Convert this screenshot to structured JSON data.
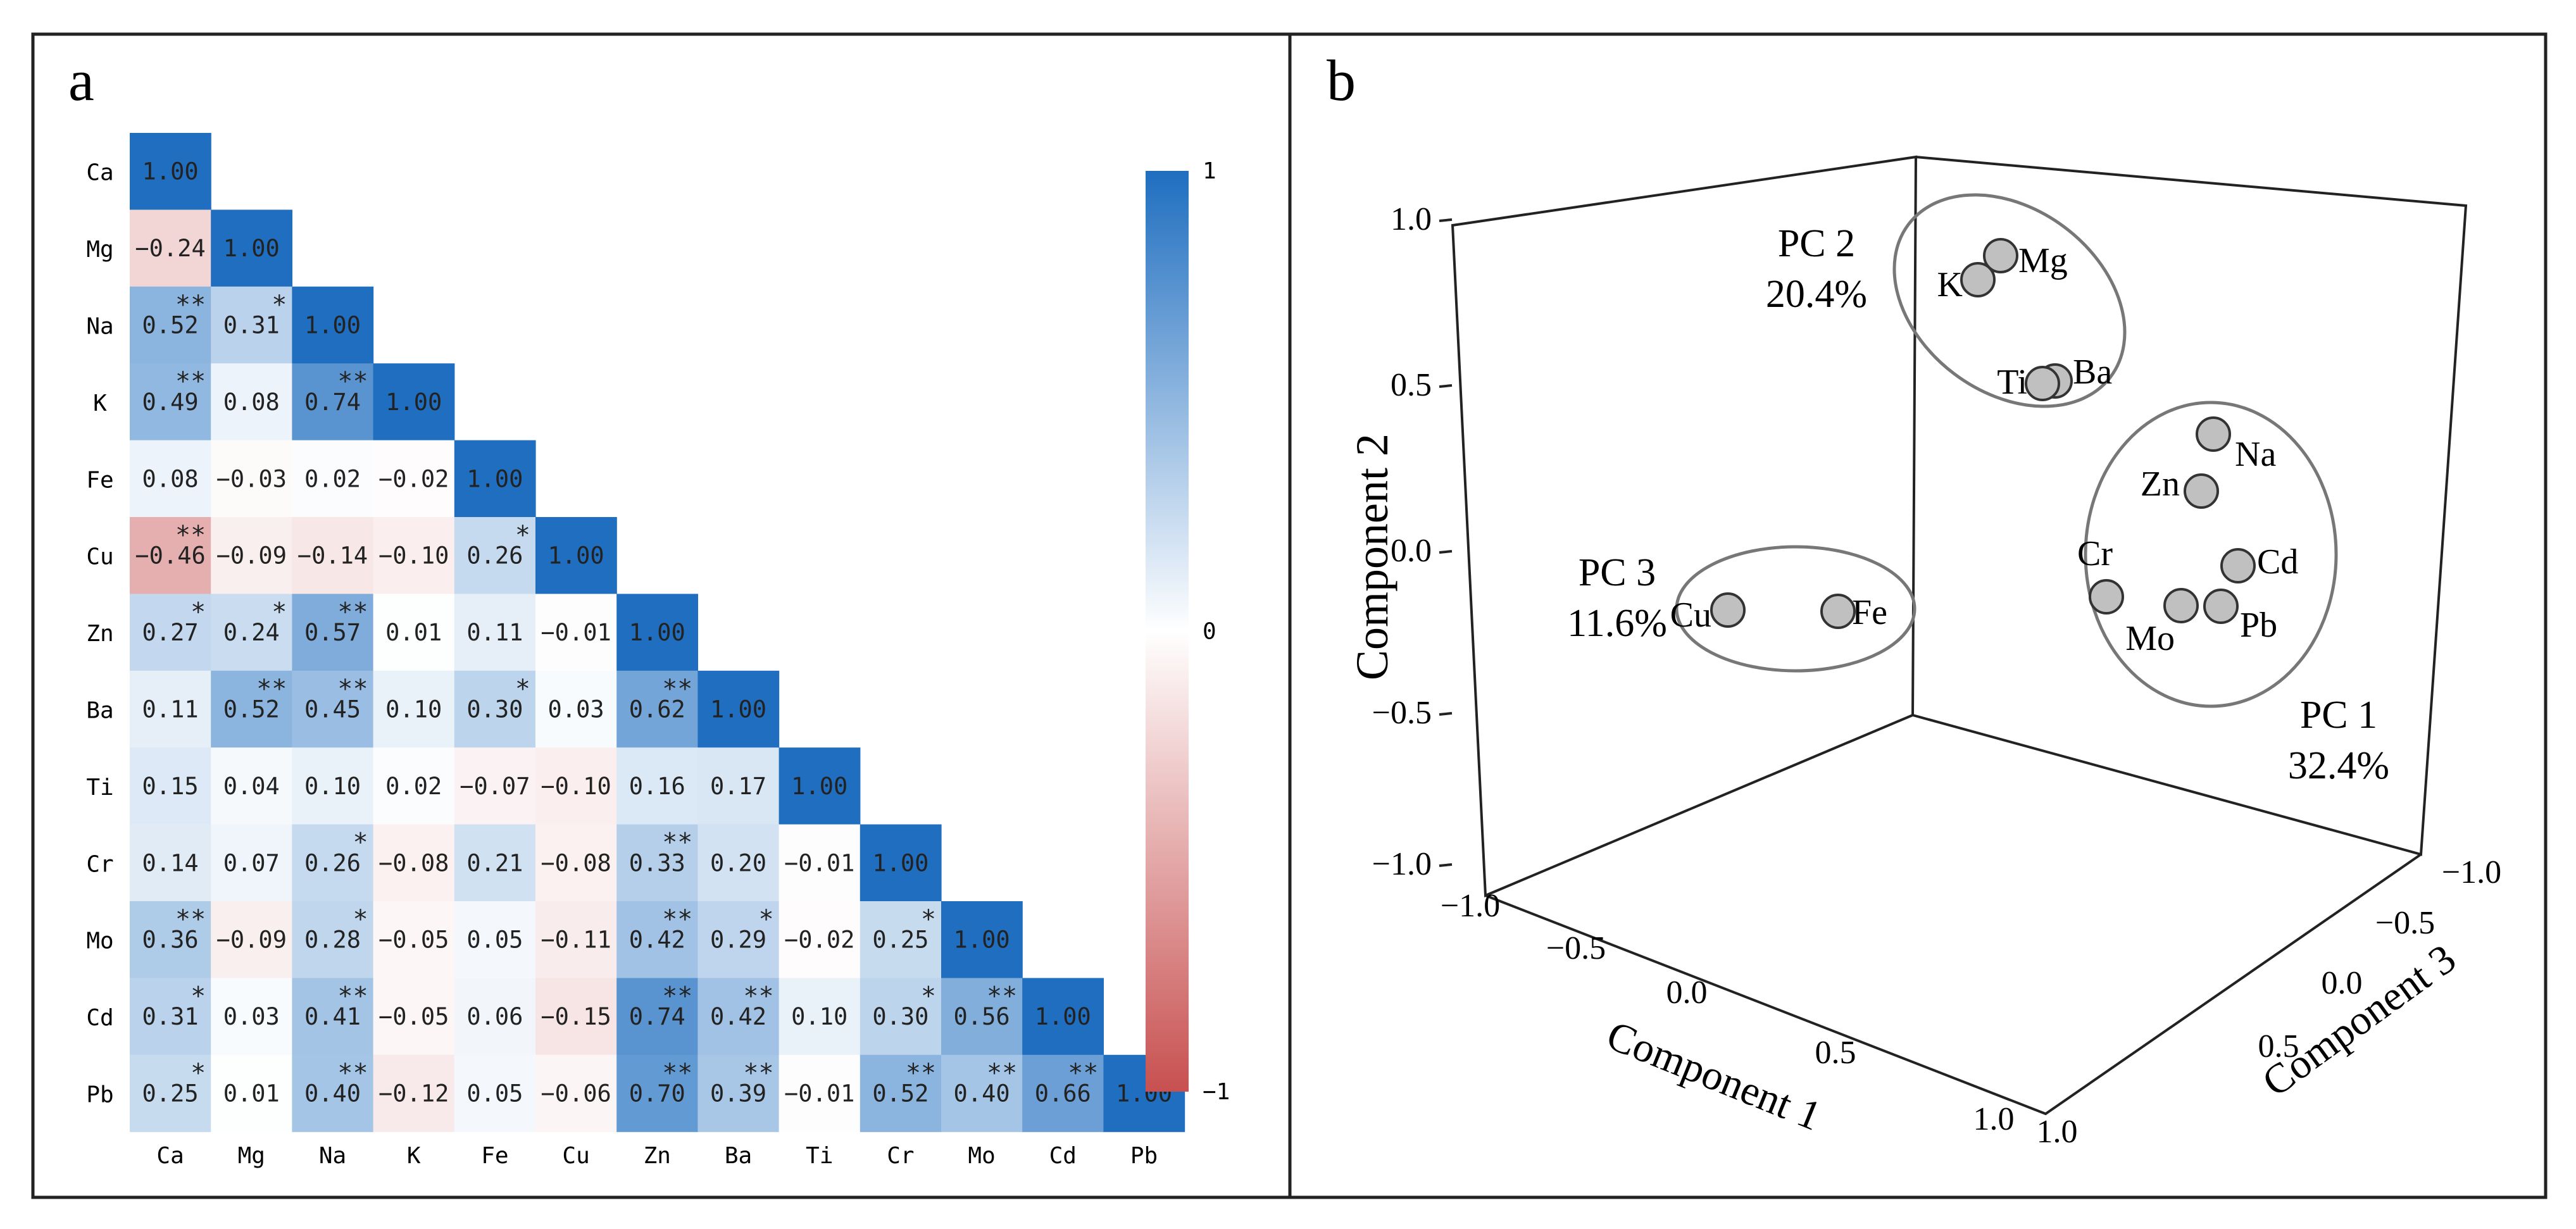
{
  "chart_data": [
    {
      "panel": "a",
      "type": "heatmap",
      "variables": [
        "Ca",
        "Mg",
        "Na",
        "K",
        "Fe",
        "Cu",
        "Zn",
        "Ba",
        "Ti",
        "Cr",
        "Mo",
        "Cd",
        "Pb"
      ],
      "colorbar": {
        "min": -1,
        "max": 1,
        "ticks": [
          "1",
          "0",
          "−1"
        ],
        "high_color": "#1f6ec0",
        "mid_color": "#ffffff",
        "low_color": "#c85050"
      },
      "rows": [
        {
          "label": "Ca",
          "values": [
            "1.00"
          ]
        },
        {
          "label": "Mg",
          "values": [
            "−0.24",
            "1.00"
          ]
        },
        {
          "label": "Na",
          "values": [
            "0.52",
            "0.31",
            "1.00"
          ],
          "sig": [
            "**",
            "*",
            ""
          ]
        },
        {
          "label": "K",
          "values": [
            "0.49",
            "0.08",
            "0.74",
            "1.00"
          ],
          "sig": [
            "**",
            "",
            "**",
            ""
          ]
        },
        {
          "label": "Fe",
          "values": [
            "0.08",
            "−0.03",
            "0.02",
            "−0.02",
            "1.00"
          ]
        },
        {
          "label": "Cu",
          "values": [
            "−0.46",
            "−0.09",
            "−0.14",
            "−0.10",
            "0.26",
            "1.00"
          ],
          "sig": [
            "**",
            "",
            "",
            "",
            "*",
            ""
          ]
        },
        {
          "label": "Zn",
          "values": [
            "0.27",
            "0.24",
            "0.57",
            "0.01",
            "0.11",
            "−0.01",
            "1.00"
          ],
          "sig": [
            "*",
            "*",
            "**",
            "",
            "",
            "",
            ""
          ]
        },
        {
          "label": "Ba",
          "values": [
            "0.11",
            "0.52",
            "0.45",
            "0.10",
            "0.30",
            "0.03",
            "0.62",
            "1.00"
          ],
          "sig": [
            "",
            "**",
            "**",
            "",
            "*",
            "",
            "**",
            ""
          ]
        },
        {
          "label": "Ti",
          "values": [
            "0.15",
            "0.04",
            "0.10",
            "0.02",
            "−0.07",
            "−0.10",
            "0.16",
            "0.17",
            "1.00"
          ]
        },
        {
          "label": "Cr",
          "values": [
            "0.14",
            "0.07",
            "0.26",
            "−0.08",
            "0.21",
            "−0.08",
            "0.33",
            "0.20",
            "−0.01",
            "1.00"
          ],
          "sig": [
            "",
            "",
            "*",
            "",
            "",
            "",
            "**",
            "",
            "",
            ""
          ]
        },
        {
          "label": "Mo",
          "values": [
            "0.36",
            "−0.09",
            "0.28",
            "−0.05",
            "0.05",
            "−0.11",
            "0.42",
            "0.29",
            "−0.02",
            "0.25",
            "1.00"
          ],
          "sig": [
            "**",
            "",
            "*",
            "",
            "",
            "",
            "**",
            "*",
            "",
            "*",
            ""
          ]
        },
        {
          "label": "Cd",
          "values": [
            "0.31",
            "0.03",
            "0.41",
            "−0.05",
            "0.06",
            "−0.15",
            "0.74",
            "0.42",
            "0.10",
            "0.30",
            "0.56",
            "1.00"
          ],
          "sig": [
            "*",
            "",
            "**",
            "",
            "",
            "",
            "**",
            "**",
            "",
            "*",
            "**",
            ""
          ]
        },
        {
          "label": "Pb",
          "values": [
            "0.25",
            "0.01",
            "0.40",
            "−0.12",
            "0.05",
            "−0.06",
            "0.70",
            "0.39",
            "−0.01",
            "0.52",
            "0.40",
            "0.66",
            "1.00"
          ],
          "sig": [
            "*",
            "",
            "**",
            "",
            "",
            "",
            "**",
            "**",
            "",
            "**",
            "**",
            "**",
            ""
          ]
        }
      ]
    },
    {
      "panel": "b",
      "type": "scatter",
      "projection": "3d",
      "axis_labels": {
        "x": "Component 1",
        "y": "Component 2",
        "z": "Component 3"
      },
      "ticks": {
        "x": [
          "−1.0",
          "−0.5",
          "0.0",
          "0.5",
          "1.0"
        ],
        "y": [
          "1.0",
          "0.5",
          "0.0",
          "−0.5",
          "−1.0"
        ],
        "z": [
          "−1.0",
          "−0.5",
          "0.0",
          "0.5",
          "1.0"
        ]
      },
      "points": [
        {
          "label": "Mg"
        },
        {
          "label": "K"
        },
        {
          "label": "Ba"
        },
        {
          "label": "Ti"
        },
        {
          "label": "Na"
        },
        {
          "label": "Zn"
        },
        {
          "label": "Cd"
        },
        {
          "label": "Cr"
        },
        {
          "label": "Pb"
        },
        {
          "label": "Mo"
        },
        {
          "label": "Cu"
        },
        {
          "label": "Fe"
        }
      ],
      "groups": [
        {
          "name": "PC 1",
          "percent": "32.4%"
        },
        {
          "name": "PC 2",
          "percent": "20.4%"
        },
        {
          "name": "PC 3",
          "percent": "11.6%"
        }
      ],
      "point_color": "#c0c0c0"
    }
  ],
  "panels": {
    "a_label": "a",
    "b_label": "b"
  }
}
